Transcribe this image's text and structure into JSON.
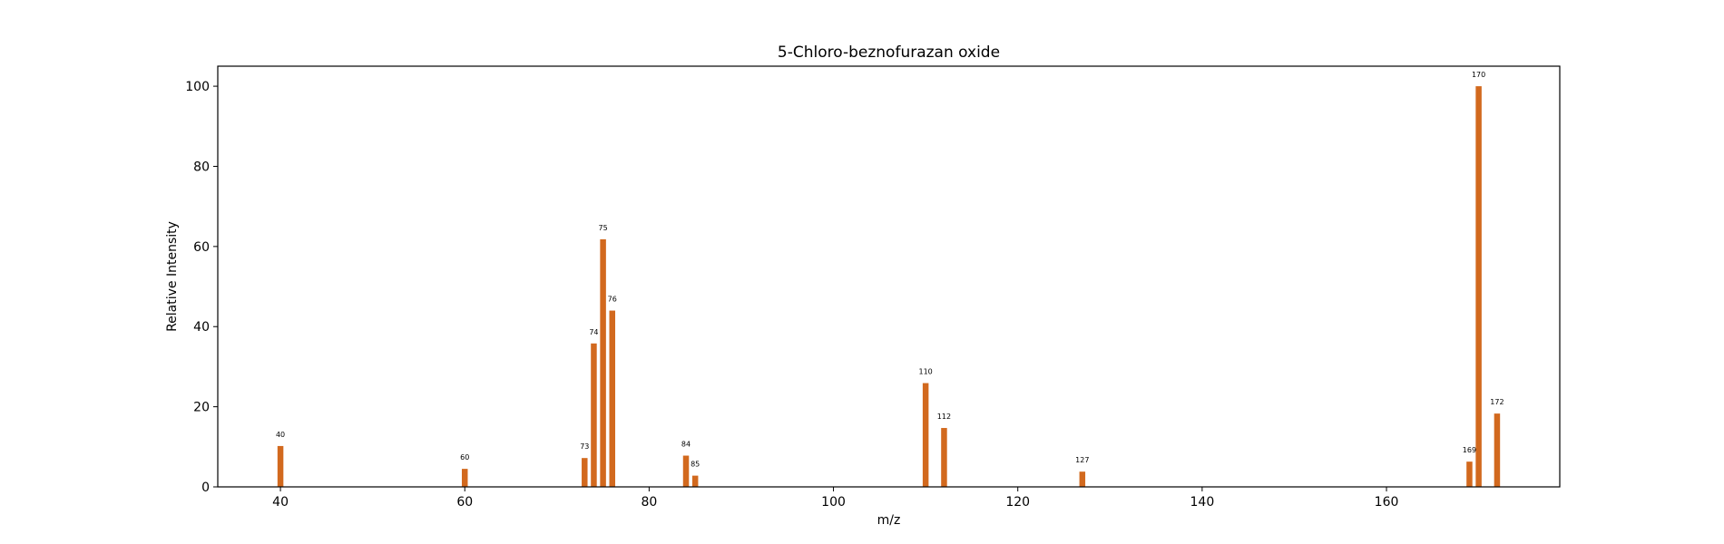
{
  "chart_data": {
    "type": "bar",
    "title": "5-Chloro-beznofurazan oxide",
    "xlabel": "m/z",
    "ylabel": "Relative Intensity",
    "xlim": [
      33.2,
      178.8
    ],
    "ylim": [
      0,
      105
    ],
    "xticks": [
      40,
      60,
      80,
      100,
      120,
      140,
      160
    ],
    "yticks": [
      0,
      20,
      40,
      60,
      80,
      100
    ],
    "grid": false,
    "bar_color": "#d2691e",
    "peaks": [
      {
        "x": 40,
        "y": 10.2,
        "label": "40"
      },
      {
        "x": 60,
        "y": 4.5,
        "label": "60"
      },
      {
        "x": 73,
        "y": 7.2,
        "label": "73"
      },
      {
        "x": 74,
        "y": 35.8,
        "label": "74"
      },
      {
        "x": 75,
        "y": 61.8,
        "label": "75"
      },
      {
        "x": 76,
        "y": 44.0,
        "label": "76"
      },
      {
        "x": 84,
        "y": 7.8,
        "label": "84"
      },
      {
        "x": 85,
        "y": 2.8,
        "label": "85"
      },
      {
        "x": 110,
        "y": 25.9,
        "label": "110"
      },
      {
        "x": 112,
        "y": 14.7,
        "label": "112"
      },
      {
        "x": 127,
        "y": 3.8,
        "label": "127"
      },
      {
        "x": 169,
        "y": 6.3,
        "label": "169"
      },
      {
        "x": 170,
        "y": 100.0,
        "label": "170"
      },
      {
        "x": 172,
        "y": 18.3,
        "label": "172"
      }
    ]
  }
}
